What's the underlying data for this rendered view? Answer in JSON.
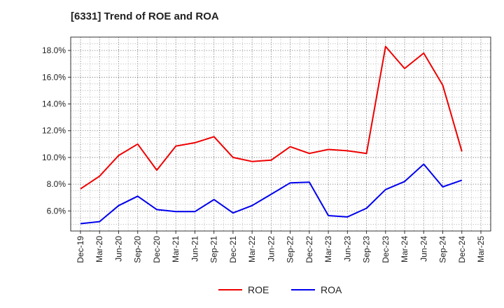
{
  "chart_data": {
    "type": "line",
    "title": "[6331]  Trend of ROE and ROA",
    "xlabel": "",
    "ylabel": "",
    "x": [
      "Dec-19",
      "Mar-20",
      "Jun-20",
      "Sep-20",
      "Dec-20",
      "Mar-21",
      "Jun-21",
      "Sep-21",
      "Dec-21",
      "Mar-22",
      "Jun-22",
      "Sep-22",
      "Dec-22",
      "Mar-23",
      "Jun-23",
      "Sep-23",
      "Dec-23",
      "Mar-24",
      "Jun-24",
      "Sep-24",
      "Dec-24"
    ],
    "x_ticks": [
      "Dec-19",
      "Mar-20",
      "Jun-20",
      "Sep-20",
      "Dec-20",
      "Mar-21",
      "Jun-21",
      "Sep-21",
      "Dec-21",
      "Mar-22",
      "Jun-22",
      "Sep-22",
      "Dec-22",
      "Mar-23",
      "Jun-23",
      "Sep-23",
      "Dec-23",
      "Mar-24",
      "Jun-24",
      "Sep-24",
      "Dec-24",
      "Mar-25"
    ],
    "y_ticks": [
      "6.0%",
      "8.0%",
      "10.0%",
      "12.0%",
      "14.0%",
      "16.0%",
      "18.0%"
    ],
    "ylim": [
      4.5,
      19.0
    ],
    "grid": true,
    "legend_position": "bottom",
    "series": [
      {
        "name": "ROE",
        "color": "#ee0000",
        "values": [
          7.65,
          8.6,
          10.15,
          11.0,
          9.05,
          10.85,
          11.1,
          11.55,
          10.0,
          9.7,
          9.8,
          10.8,
          10.3,
          10.6,
          10.5,
          10.3,
          18.3,
          16.65,
          17.8,
          15.4,
          10.45
        ]
      },
      {
        "name": "ROA",
        "color": "#0000ee",
        "values": [
          5.05,
          5.2,
          6.4,
          7.1,
          6.1,
          5.95,
          5.95,
          6.85,
          5.85,
          6.4,
          7.25,
          8.1,
          8.15,
          5.65,
          5.55,
          6.2,
          7.6,
          8.2,
          9.5,
          7.8,
          8.3
        ]
      }
    ]
  }
}
